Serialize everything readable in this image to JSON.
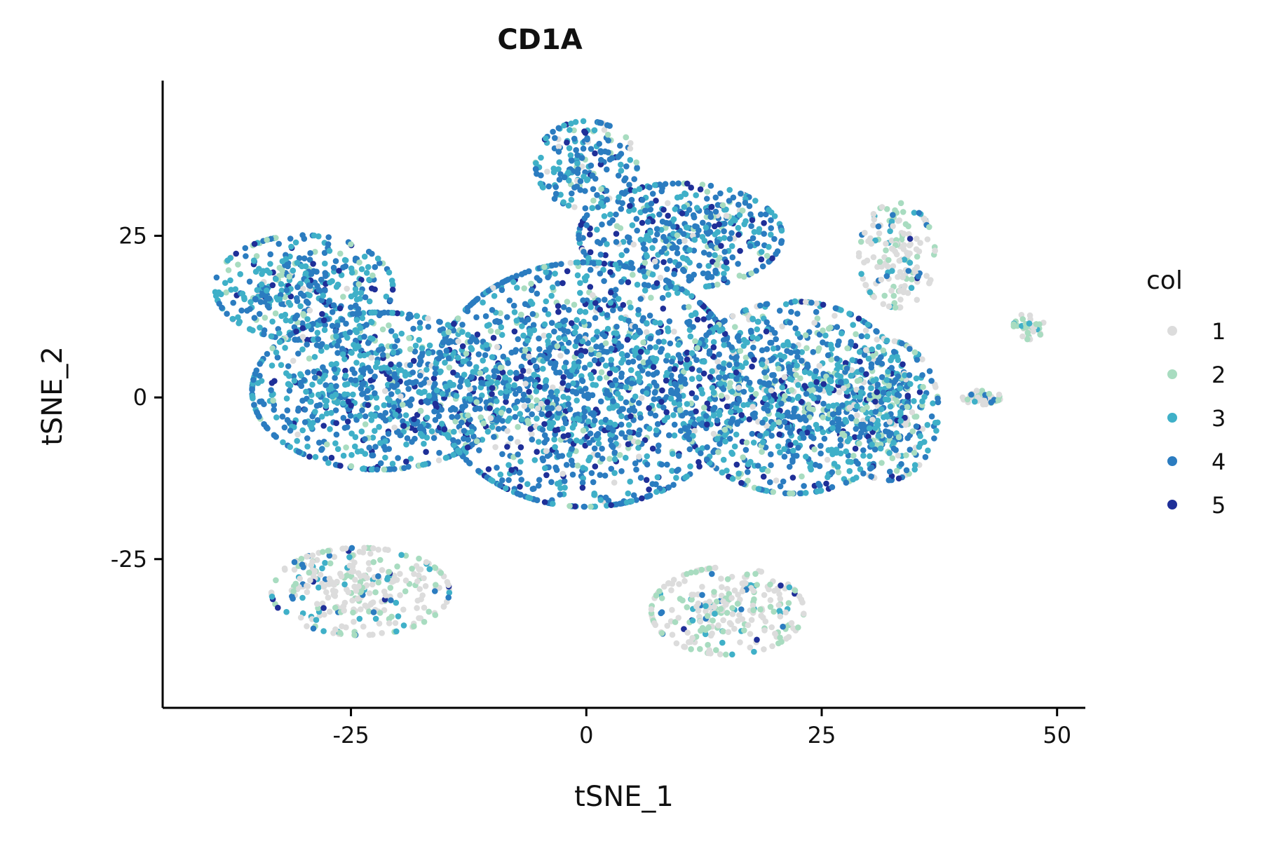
{
  "chart_data": {
    "type": "scatter",
    "title": "CD1A",
    "xlabel": "tSNE_1",
    "ylabel": "tSNE_2",
    "xlim": [
      -45,
      53
    ],
    "ylim": [
      -48,
      49
    ],
    "x_ticks": [
      -25,
      0,
      25,
      50
    ],
    "y_ticks": [
      -25,
      0,
      25
    ],
    "x_tick_labels": [
      "-25",
      "0",
      "25",
      "50"
    ],
    "y_tick_labels": [
      "-25",
      "0",
      "25"
    ],
    "grid": false,
    "legend": {
      "title": "col",
      "placement": "right",
      "entries": [
        {
          "label": "1",
          "color": "#dcdcdc"
        },
        {
          "label": "2",
          "color": "#a8dcc0"
        },
        {
          "label": "3",
          "color": "#3fb0c8"
        },
        {
          "label": "4",
          "color": "#2b7cc0"
        },
        {
          "label": "5",
          "color": "#1f2f98"
        }
      ]
    },
    "clusters": [
      {
        "name": "main-left",
        "center": [
          -22,
          1
        ],
        "spread": [
          10,
          9
        ],
        "weights": [
          0.04,
          0.07,
          0.32,
          0.47,
          0.1
        ]
      },
      {
        "name": "upper-left",
        "center": [
          -30,
          17
        ],
        "spread": [
          7,
          6
        ],
        "weights": [
          0.06,
          0.08,
          0.38,
          0.4,
          0.08
        ]
      },
      {
        "name": "main-center",
        "center": [
          0,
          2
        ],
        "spread": [
          12,
          14
        ],
        "weights": [
          0.04,
          0.08,
          0.3,
          0.46,
          0.12
        ]
      },
      {
        "name": "top-center",
        "center": [
          0,
          36
        ],
        "spread": [
          4,
          5
        ],
        "weights": [
          0.08,
          0.1,
          0.32,
          0.42,
          0.08
        ]
      },
      {
        "name": "upper-center-right",
        "center": [
          10,
          25
        ],
        "spread": [
          8,
          6
        ],
        "weights": [
          0.04,
          0.08,
          0.28,
          0.48,
          0.12
        ]
      },
      {
        "name": "right-body",
        "center": [
          22,
          0
        ],
        "spread": [
          9,
          11
        ],
        "weights": [
          0.06,
          0.12,
          0.32,
          0.42,
          0.08
        ]
      },
      {
        "name": "far-right-edge",
        "center": [
          32,
          -2
        ],
        "spread": [
          4,
          8
        ],
        "weights": [
          0.1,
          0.15,
          0.32,
          0.37,
          0.06
        ]
      },
      {
        "name": "bottom-center",
        "center": [
          15,
          -33
        ],
        "spread": [
          6,
          5
        ],
        "weights": [
          0.55,
          0.3,
          0.08,
          0.05,
          0.02
        ]
      },
      {
        "name": "bottom-left",
        "center": [
          -24,
          -30
        ],
        "spread": [
          7,
          5
        ],
        "weights": [
          0.58,
          0.25,
          0.1,
          0.05,
          0.02
        ]
      },
      {
        "name": "upper-right-arm",
        "center": [
          33,
          22
        ],
        "spread": [
          3,
          6
        ],
        "weights": [
          0.55,
          0.25,
          0.1,
          0.08,
          0.02
        ]
      },
      {
        "name": "right-islet",
        "center": [
          47,
          11
        ],
        "spread": [
          1.2,
          1.5
        ],
        "weights": [
          0.6,
          0.3,
          0.1,
          0.0,
          0.0
        ]
      },
      {
        "name": "small-right-islet",
        "center": [
          42,
          0
        ],
        "spread": [
          1.5,
          0.8
        ],
        "weights": [
          0.5,
          0.3,
          0.1,
          0.1,
          0.0
        ]
      }
    ]
  }
}
